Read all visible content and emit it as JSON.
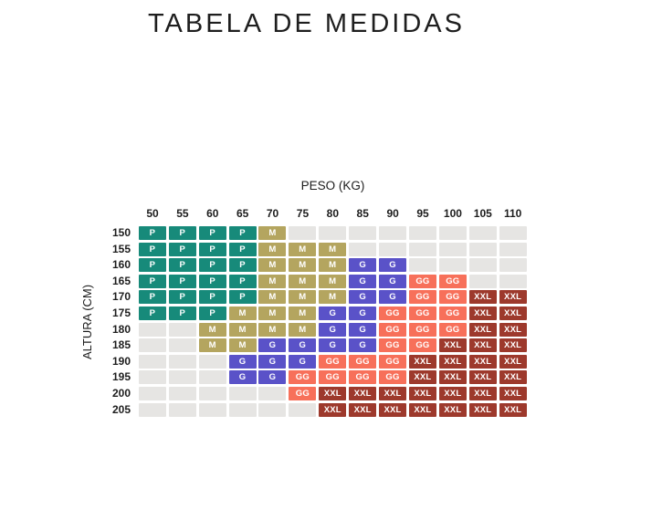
{
  "title": "TABELA DE MEDIDAS",
  "chart_data": {
    "type": "heatmap",
    "title": "TABELA DE MEDIDAS",
    "xlabel": "PESO (KG)",
    "ylabel": "ALTURA (CM)",
    "x_categories": [
      "50",
      "55",
      "60",
      "65",
      "70",
      "75",
      "80",
      "85",
      "90",
      "95",
      "100",
      "105",
      "110"
    ],
    "y_categories": [
      "150",
      "155",
      "160",
      "165",
      "170",
      "175",
      "180",
      "185",
      "190",
      "195",
      "200",
      "205"
    ],
    "sizes": [
      "P",
      "M",
      "G",
      "GG",
      "XXL"
    ],
    "colors": {
      "P": "#178a7a",
      "M": "#b4a55f",
      "G": "#5a52c8",
      "GG": "#f7705a",
      "XXL": "#9d392c",
      "empty": "#e6e5e3",
      "cell_text": "#ffffff",
      "label_text": "#1d1d1d"
    },
    "rows": [
      {
        "label": "150",
        "cells": [
          "P",
          "P",
          "P",
          "P",
          "M",
          "",
          "",
          "",
          "",
          "",
          "",
          "",
          ""
        ]
      },
      {
        "label": "155",
        "cells": [
          "P",
          "P",
          "P",
          "P",
          "M",
          "M",
          "M",
          "",
          "",
          "",
          "",
          "",
          ""
        ]
      },
      {
        "label": "160",
        "cells": [
          "P",
          "P",
          "P",
          "P",
          "M",
          "M",
          "M",
          "G",
          "G",
          "",
          "",
          "",
          ""
        ]
      },
      {
        "label": "165",
        "cells": [
          "P",
          "P",
          "P",
          "P",
          "M",
          "M",
          "M",
          "G",
          "G",
          "GG",
          "GG",
          "",
          ""
        ]
      },
      {
        "label": "170",
        "cells": [
          "P",
          "P",
          "P",
          "P",
          "M",
          "M",
          "M",
          "G",
          "G",
          "GG",
          "GG",
          "XXL",
          "XXL"
        ]
      },
      {
        "label": "175",
        "cells": [
          "P",
          "P",
          "P",
          "M",
          "M",
          "M",
          "G",
          "G",
          "GG",
          "GG",
          "GG",
          "XXL",
          "XXL"
        ]
      },
      {
        "label": "180",
        "cells": [
          "",
          "",
          "M",
          "M",
          "M",
          "M",
          "G",
          "G",
          "GG",
          "GG",
          "GG",
          "XXL",
          "XXL"
        ]
      },
      {
        "label": "185",
        "cells": [
          "",
          "",
          "M",
          "M",
          "G",
          "G",
          "G",
          "G",
          "GG",
          "GG",
          "XXL",
          "XXL",
          "XXL"
        ]
      },
      {
        "label": "190",
        "cells": [
          "",
          "",
          "",
          "G",
          "G",
          "G",
          "GG",
          "GG",
          "GG",
          "XXL",
          "XXL",
          "XXL",
          "XXL"
        ]
      },
      {
        "label": "195",
        "cells": [
          "",
          "",
          "",
          "G",
          "G",
          "GG",
          "GG",
          "GG",
          "GG",
          "XXL",
          "XXL",
          "XXL",
          "XXL"
        ]
      },
      {
        "label": "200",
        "cells": [
          "",
          "",
          "",
          "",
          "",
          "GG",
          "XXL",
          "XXL",
          "XXL",
          "XXL",
          "XXL",
          "XXL",
          "XXL"
        ]
      },
      {
        "label": "205",
        "cells": [
          "",
          "",
          "",
          "",
          "",
          "",
          "XXL",
          "XXL",
          "XXL",
          "XXL",
          "XXL",
          "XXL",
          "XXL"
        ]
      }
    ]
  }
}
